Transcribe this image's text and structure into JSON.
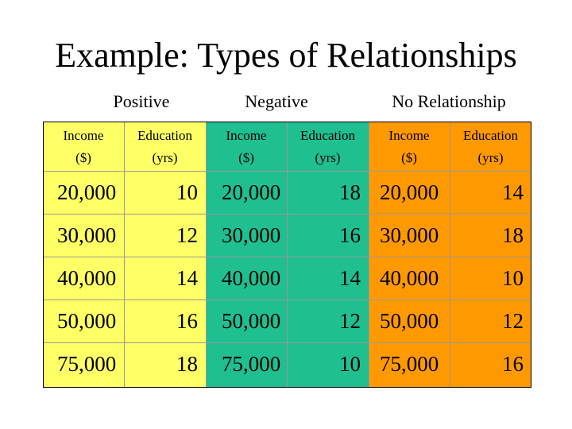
{
  "title": "Example: Types of Relationships",
  "colors": {
    "positive": "#ffff66",
    "negative": "#1fbf8f",
    "none": "#ff9900"
  },
  "groups": [
    {
      "label": "Positive",
      "income_header": [
        "Income",
        "($)"
      ],
      "education_header": [
        "Education",
        "(yrs)"
      ],
      "rows": [
        {
          "income": "20,000",
          "education": "10"
        },
        {
          "income": "30,000",
          "education": "12"
        },
        {
          "income": "40,000",
          "education": "14"
        },
        {
          "income": "50,000",
          "education": "16"
        },
        {
          "income": "75,000",
          "education": "18"
        }
      ]
    },
    {
      "label": "Negative",
      "income_header": [
        "Income",
        "($)"
      ],
      "education_header": [
        "Education",
        "(yrs)"
      ],
      "rows": [
        {
          "income": "20,000",
          "education": "18"
        },
        {
          "income": "30,000",
          "education": "16"
        },
        {
          "income": "40,000",
          "education": "14"
        },
        {
          "income": "50,000",
          "education": "12"
        },
        {
          "income": "75,000",
          "education": "10"
        }
      ]
    },
    {
      "label": "No Relationship",
      "income_header": [
        "Income",
        "($)"
      ],
      "education_header": [
        "Education",
        "(yrs)"
      ],
      "rows": [
        {
          "income": "20,000",
          "education": "14"
        },
        {
          "income": "30,000",
          "education": "18"
        },
        {
          "income": "40,000",
          "education": "10"
        },
        {
          "income": "50,000",
          "education": "12"
        },
        {
          "income": "75,000",
          "education": "16"
        }
      ]
    }
  ]
}
